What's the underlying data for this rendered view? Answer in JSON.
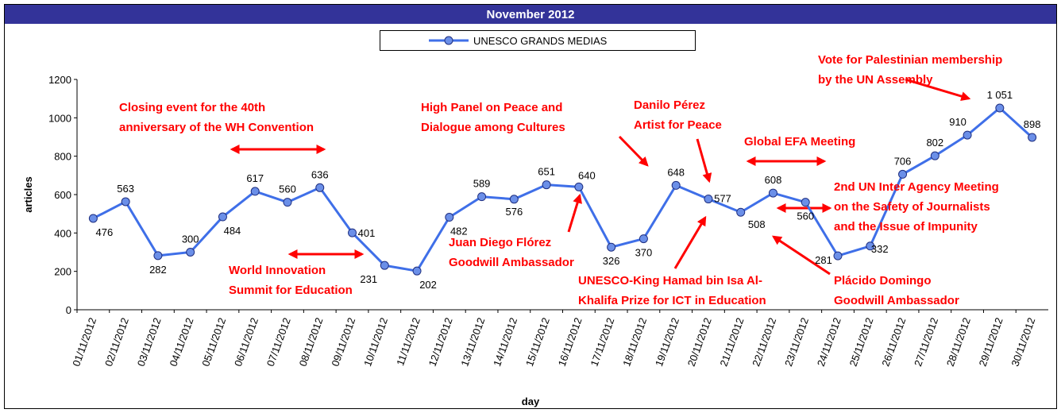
{
  "chart_data": {
    "type": "line",
    "title": "November 2012",
    "xlabel": "day",
    "ylabel": "articles",
    "categories": [
      "01/11/2012",
      "02/11/2012",
      "03/11/2012",
      "04/11/2012",
      "05/11/2012",
      "06/11/2012",
      "07/11/2012",
      "08/11/2012",
      "09/11/2012",
      "10/11/2012",
      "11/11/2012",
      "12/11/2012",
      "13/11/2012",
      "14/11/2012",
      "15/11/2012",
      "16/11/2012",
      "17/11/2012",
      "18/11/2012",
      "19/11/2012",
      "20/11/2012",
      "21/11/2012",
      "22/11/2012",
      "23/11/2012",
      "24/11/2012",
      "25/11/2012",
      "26/11/2012",
      "27/11/2012",
      "28/11/2012",
      "29/11/2012",
      "30/11/2012"
    ],
    "series": [
      {
        "name": "UNESCO GRANDS MEDIAS",
        "color": "#3f6fe8",
        "values": [
          476,
          563,
          282,
          300,
          484,
          617,
          560,
          636,
          401,
          231,
          202,
          482,
          589,
          576,
          651,
          640,
          326,
          370,
          648,
          577,
          508,
          608,
          560,
          281,
          332,
          706,
          802,
          910,
          1051,
          898
        ],
        "value_labels": [
          "476",
          "563",
          "282",
          "300",
          "484",
          "617",
          "560",
          "636",
          "401",
          "231",
          "202",
          "482",
          "589",
          "576",
          "651",
          "640",
          "326",
          "370",
          "648",
          "577",
          "508",
          "608",
          "560",
          "281",
          "332",
          "706",
          "802",
          "910",
          "1 051",
          "898"
        ]
      }
    ],
    "ylim": [
      0,
      1200
    ],
    "yticks": [
      0,
      200,
      400,
      600,
      800,
      1000,
      1200
    ],
    "legend": "top",
    "annotations": [
      {
        "lines": [
          "Closing event for the 40th",
          "anniversary of the WH Convention"
        ]
      },
      {
        "lines": [
          "World Innovation",
          "Summit for Education"
        ]
      },
      {
        "lines": [
          "High Panel on Peace and",
          "Dialogue among Cultures"
        ]
      },
      {
        "lines": [
          "Juan Diego Flórez",
          "Goodwill Ambassador"
        ]
      },
      {
        "lines": [
          "Danilo Pérez",
          "Artist for Peace"
        ]
      },
      {
        "lines": [
          "Global EFA Meeting"
        ]
      },
      {
        "lines": [
          "UNESCO-King Hamad bin Isa Al-",
          "Khalifa Prize for ICT in Education"
        ]
      },
      {
        "lines": [
          "2nd UN Inter Agency Meeting",
          "on the Safety of Journalists",
          "and the Issue of Impunity"
        ]
      },
      {
        "lines": [
          "Plácido Domingo",
          "Goodwill Ambassador"
        ]
      },
      {
        "lines": [
          "Vote for Palestinian membership",
          "by the UN Assembly"
        ]
      }
    ]
  }
}
